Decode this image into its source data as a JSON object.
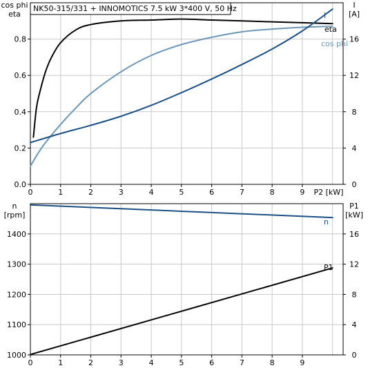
{
  "title": "NK50-315/331 + INNOMOTICS   7.5 kW   3*400 V, 50 Hz",
  "colors": {
    "grid": "#c8c8c8",
    "axis": "#000000",
    "eta": "#000000",
    "cos_phi": "#6a96b8",
    "current": "#1a4f86",
    "speed": "#1a4f86",
    "p1": "#000000"
  },
  "chart_data": [
    {
      "type": "line",
      "x_tick_labels": [
        "0",
        "1",
        "2",
        "3",
        "4",
        "5",
        "6",
        "7",
        "8",
        "9"
      ],
      "x_label": "P2 [kW]",
      "xlim": [
        0,
        10.35
      ],
      "left_axis": {
        "label_line1": "cos phi",
        "label_line2": "eta",
        "ylim": [
          0,
          1.0
        ],
        "ticks": [
          0.0,
          0.2,
          0.4,
          0.6,
          0.8
        ],
        "tick_labels": [
          "0.0",
          "0.2",
          "0.4",
          "0.6",
          "0.8"
        ]
      },
      "right_axis": {
        "label_line1": "I",
        "label_line2": "[A]",
        "ylim": [
          0,
          20
        ],
        "ticks": [
          0,
          4,
          8,
          12,
          16
        ],
        "tick_labels": [
          "0",
          "4",
          "8",
          "12",
          "16"
        ]
      },
      "series": [
        {
          "name": "eta",
          "axis": "left",
          "color_key": "eta",
          "x": [
            0.1,
            0.2,
            0.3,
            0.5,
            0.7,
            1.0,
            1.5,
            2.0,
            3.0,
            4.0,
            5.0,
            6.0,
            7.0,
            8.0,
            9.0,
            10.0
          ],
          "y": [
            0.26,
            0.42,
            0.5,
            0.62,
            0.7,
            0.78,
            0.85,
            0.88,
            0.9,
            0.905,
            0.91,
            0.905,
            0.9,
            0.895,
            0.89,
            0.885
          ]
        },
        {
          "name": "cos phi",
          "axis": "left",
          "color_key": "cos_phi",
          "x": [
            0.0,
            0.25,
            0.5,
            1.0,
            1.5,
            2.0,
            3.0,
            4.0,
            5.0,
            6.0,
            7.0,
            8.0,
            9.0,
            10.0
          ],
          "y": [
            0.1,
            0.17,
            0.23,
            0.33,
            0.42,
            0.5,
            0.62,
            0.71,
            0.77,
            0.81,
            0.84,
            0.855,
            0.865,
            0.87
          ]
        },
        {
          "name": "I",
          "axis": "right",
          "color_key": "current",
          "x": [
            0.0,
            1.0,
            2.0,
            3.0,
            4.0,
            5.0,
            6.0,
            7.0,
            8.0,
            9.0,
            10.0
          ],
          "y": [
            4.6,
            5.6,
            6.5,
            7.5,
            8.7,
            10.1,
            11.6,
            13.2,
            14.9,
            16.9,
            19.3
          ]
        }
      ]
    },
    {
      "type": "line",
      "x_tick_labels": [
        "0",
        "1",
        "2",
        "3",
        "4",
        "5",
        "6",
        "7",
        "8",
        "9"
      ],
      "xlim": [
        0,
        10.35
      ],
      "left_axis": {
        "label_line1": "n",
        "label_line2": "[rpm]",
        "ylim": [
          1000,
          1500
        ],
        "ticks": [
          1000,
          1100,
          1200,
          1300,
          1400
        ],
        "tick_labels": [
          "1000",
          "1100",
          "1200",
          "1300",
          "1400"
        ]
      },
      "right_axis": {
        "label_line1": "P1",
        "label_line2": "[kW]",
        "ylim": [
          0,
          20
        ],
        "ticks": [
          0,
          4,
          8,
          12,
          16
        ],
        "tick_labels": [
          "0",
          "4",
          "8",
          "12",
          "16"
        ]
      },
      "series": [
        {
          "name": "n",
          "axis": "left",
          "color_key": "speed",
          "x": [
            0.0,
            10.0
          ],
          "y": [
            1496,
            1454
          ]
        },
        {
          "name": "P1",
          "axis": "right",
          "color_key": "p1",
          "x": [
            0.0,
            10.0
          ],
          "y": [
            0.05,
            11.5
          ]
        }
      ]
    }
  ]
}
